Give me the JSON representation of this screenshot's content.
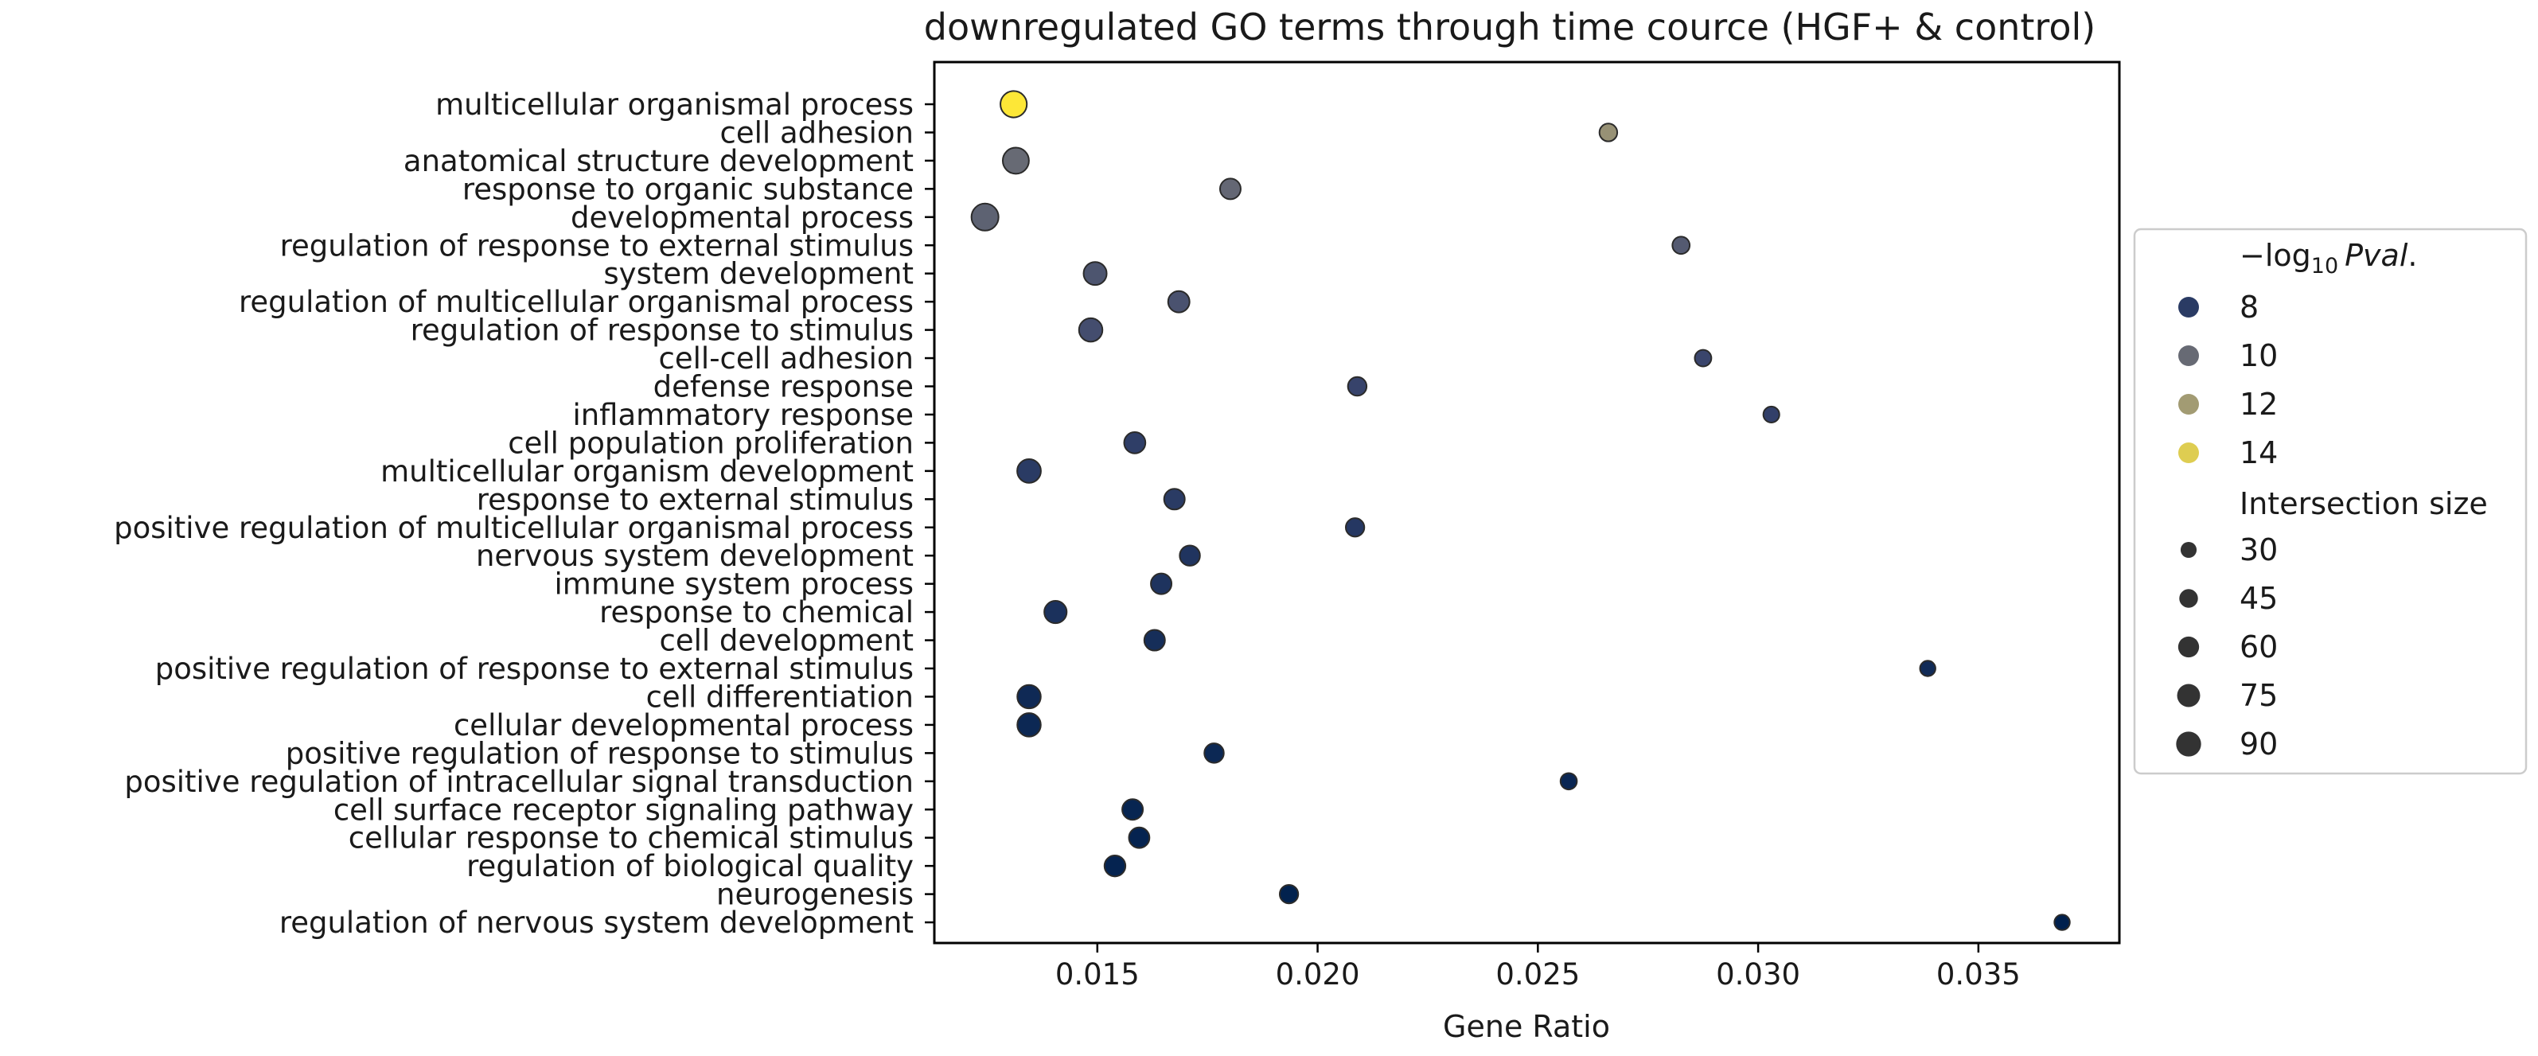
{
  "chart_data": {
    "type": "scatter",
    "title": "downregulated GO terms through time cource (HGF+ & control)",
    "xlabel": "Gene Ratio",
    "ylabel": "",
    "xlim": [
      0.0113,
      0.0382
    ],
    "xticks": [
      0.015,
      0.02,
      0.025,
      0.03,
      0.035
    ],
    "xtick_labels": [
      "0.015",
      "0.020",
      "0.025",
      "0.030",
      "0.035"
    ],
    "grid": false,
    "legend_position": "right, outside plot",
    "legend": {
      "color_title_prefix": "−log",
      "color_title_sub": "10",
      "color_title_italic": "Pval",
      "color_title_suffix": ".",
      "color_entries": [
        {
          "label": "8",
          "value": 8
        },
        {
          "label": "10",
          "value": 10
        },
        {
          "label": "12",
          "value": 12
        },
        {
          "label": "14",
          "value": 14
        }
      ],
      "size_title": "Intersection size",
      "size_entries": [
        {
          "label": "30",
          "value": 30
        },
        {
          "label": "45",
          "value": 45
        },
        {
          "label": "60",
          "value": 60
        },
        {
          "label": "75",
          "value": 75
        },
        {
          "label": "90",
          "value": 90
        }
      ]
    },
    "colormap": "cividis",
    "color_range": [
      6.3,
      15.0
    ],
    "size_range": [
      18,
      115
    ],
    "points": [
      {
        "term": "multicellular organismal process",
        "gene_ratio": 0.0131,
        "neg_log10_pval": 15.0,
        "intersection_size": 102
      },
      {
        "term": "cell adhesion",
        "gene_ratio": 0.0266,
        "neg_log10_pval": 11.6,
        "intersection_size": 40
      },
      {
        "term": "anatomical structure development",
        "gene_ratio": 0.01315,
        "neg_log10_pval": 10.0,
        "intersection_size": 100
      },
      {
        "term": "response to organic substance",
        "gene_ratio": 0.01802,
        "neg_log10_pval": 9.9,
        "intersection_size": 58
      },
      {
        "term": "developmental process",
        "gene_ratio": 0.01245,
        "neg_log10_pval": 9.7,
        "intersection_size": 108
      },
      {
        "term": "regulation of response to external stimulus",
        "gene_ratio": 0.02825,
        "neg_log10_pval": 9.4,
        "intersection_size": 37
      },
      {
        "term": "system development",
        "gene_ratio": 0.01495,
        "neg_log10_pval": 9.2,
        "intersection_size": 75
      },
      {
        "term": "regulation of multicellular organismal process",
        "gene_ratio": 0.01685,
        "neg_log10_pval": 9.1,
        "intersection_size": 63
      },
      {
        "term": "regulation of response to stimulus",
        "gene_ratio": 0.01485,
        "neg_log10_pval": 8.9,
        "intersection_size": 78
      },
      {
        "term": "cell-cell adhesion",
        "gene_ratio": 0.02875,
        "neg_log10_pval": 8.6,
        "intersection_size": 33
      },
      {
        "term": "defense response",
        "gene_ratio": 0.0209,
        "neg_log10_pval": 8.5,
        "intersection_size": 45
      },
      {
        "term": "inflammatory response",
        "gene_ratio": 0.0303,
        "neg_log10_pval": 8.3,
        "intersection_size": 30
      },
      {
        "term": "cell population proliferation",
        "gene_ratio": 0.01585,
        "neg_log10_pval": 8.2,
        "intersection_size": 62
      },
      {
        "term": "multicellular organism development",
        "gene_ratio": 0.01345,
        "neg_log10_pval": 8.0,
        "intersection_size": 80
      },
      {
        "term": "response to external stimulus",
        "gene_ratio": 0.01675,
        "neg_log10_pval": 8.0,
        "intersection_size": 58
      },
      {
        "term": "positive regulation of multicellular organismal process",
        "gene_ratio": 0.02085,
        "neg_log10_pval": 7.8,
        "intersection_size": 44
      },
      {
        "term": "nervous system development",
        "gene_ratio": 0.0171,
        "neg_log10_pval": 7.6,
        "intersection_size": 55
      },
      {
        "term": "immune system process",
        "gene_ratio": 0.01645,
        "neg_log10_pval": 7.5,
        "intersection_size": 58
      },
      {
        "term": "response to chemical",
        "gene_ratio": 0.01405,
        "neg_log10_pval": 7.4,
        "intersection_size": 70
      },
      {
        "term": "cell development",
        "gene_ratio": 0.0163,
        "neg_log10_pval": 7.2,
        "intersection_size": 58
      },
      {
        "term": "positive regulation of response to external stimulus",
        "gene_ratio": 0.03385,
        "neg_log10_pval": 7.0,
        "intersection_size": 27
      },
      {
        "term": "cell differentiation",
        "gene_ratio": 0.01345,
        "neg_log10_pval": 6.9,
        "intersection_size": 78
      },
      {
        "term": "cellular developmental process",
        "gene_ratio": 0.01345,
        "neg_log10_pval": 6.8,
        "intersection_size": 78
      },
      {
        "term": "positive regulation of response to stimulus",
        "gene_ratio": 0.01765,
        "neg_log10_pval": 6.8,
        "intersection_size": 50
      },
      {
        "term": "positive regulation of intracellular signal transduction",
        "gene_ratio": 0.0257,
        "neg_log10_pval": 6.7,
        "intersection_size": 32
      },
      {
        "term": "cell surface receptor signaling pathway",
        "gene_ratio": 0.0158,
        "neg_log10_pval": 6.6,
        "intersection_size": 58
      },
      {
        "term": "cellular response to chemical stimulus",
        "gene_ratio": 0.01595,
        "neg_log10_pval": 6.5,
        "intersection_size": 57
      },
      {
        "term": "regulation of biological quality",
        "gene_ratio": 0.0154,
        "neg_log10_pval": 6.5,
        "intersection_size": 60
      },
      {
        "term": "neurogenesis",
        "gene_ratio": 0.01935,
        "neg_log10_pval": 6.4,
        "intersection_size": 44
      },
      {
        "term": "regulation of nervous system development",
        "gene_ratio": 0.0369,
        "neg_log10_pval": 6.3,
        "intersection_size": 27
      }
    ]
  }
}
